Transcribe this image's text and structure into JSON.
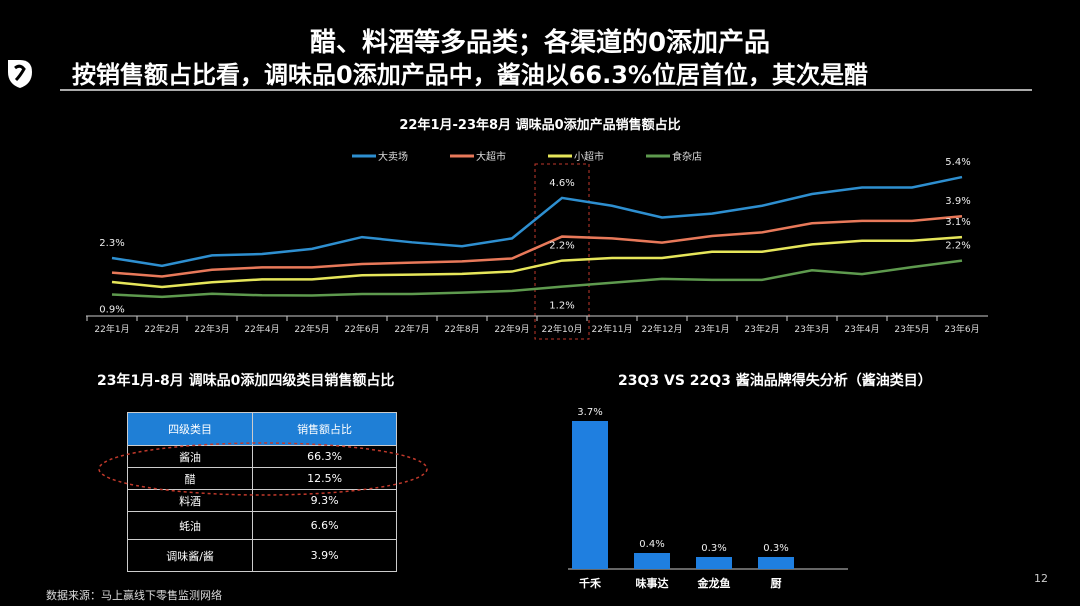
{
  "header": {
    "title_line1": "醋、料酒等多品类；各渠道的0添加产品",
    "title_line2": "按销售额占比看，调味品0添加产品中，酱油以66.3%位居首位，其次是醋"
  },
  "chart_data": [
    {
      "type": "line",
      "title": "22年1月-23年8月 调味品0添加产品销售额占比",
      "ylim": [
        0,
        6
      ],
      "categories": [
        "22年1月",
        "22年2月",
        "22年3月",
        "22年4月",
        "22年5月",
        "22年6月",
        "22年7月",
        "22年8月",
        "22年9月",
        "22年10月",
        "22年11月",
        "22年12月",
        "23年1月",
        "23年2月",
        "23年3月",
        "23年4月",
        "23年5月",
        "23年6月"
      ],
      "series": [
        {
          "name": "大卖场",
          "color": "#2e8fd0",
          "values": [
            2.3,
            2.0,
            2.4,
            2.45,
            2.65,
            3.1,
            2.9,
            2.75,
            3.05,
            4.6,
            4.3,
            3.85,
            4.0,
            4.3,
            4.75,
            5.0,
            5.0,
            5.4
          ]
        },
        {
          "name": "大超市",
          "color": "#e8795a",
          "values": [
            1.74,
            1.59,
            1.85,
            1.94,
            1.94,
            2.07,
            2.12,
            2.17,
            2.28,
            3.12,
            3.05,
            2.89,
            3.14,
            3.28,
            3.63,
            3.72,
            3.72,
            3.9
          ]
        },
        {
          "name": "小超市",
          "color": "#e6e65a",
          "values": [
            1.38,
            1.19,
            1.37,
            1.48,
            1.48,
            1.64,
            1.66,
            1.69,
            1.78,
            2.2,
            2.3,
            2.3,
            2.54,
            2.54,
            2.82,
            2.96,
            2.96,
            3.1
          ]
        },
        {
          "name": "食杂店",
          "color": "#5e9a4e",
          "values": [
            0.9,
            0.81,
            0.93,
            0.87,
            0.86,
            0.92,
            0.92,
            0.97,
            1.04,
            1.2,
            1.35,
            1.5,
            1.46,
            1.46,
            1.83,
            1.68,
            1.95,
            2.2
          ]
        }
      ],
      "annotations": [
        {
          "series": 0,
          "index": 0,
          "text": "2.3%"
        },
        {
          "series": 3,
          "index": 0,
          "text": "0.9%"
        },
        {
          "series": 0,
          "index": 9,
          "text": "4.6%"
        },
        {
          "series": 2,
          "index": 9,
          "text": "2.2%"
        },
        {
          "series": 3,
          "index": 9,
          "text": "1.2%"
        },
        {
          "series": 0,
          "index": 17,
          "text": "5.4%"
        },
        {
          "series": 1,
          "index": 17,
          "text": "3.9%"
        },
        {
          "series": 2,
          "index": 17,
          "text": "3.1%"
        },
        {
          "series": 3,
          "index": 17,
          "text": "2.2%"
        }
      ],
      "highlight_category": "22年10月",
      "legend_position": "top"
    },
    {
      "type": "table",
      "title": "23年1月-8月 调味品0添加四级类目销售额占比",
      "columns": [
        "四级类目",
        "销售额占比"
      ],
      "rows": [
        [
          "酱油",
          "66.3%"
        ],
        [
          "醋",
          "12.5%"
        ],
        [
          "料酒",
          "9.3%"
        ],
        [
          "蚝油",
          "6.6%"
        ],
        [
          "调味酱/酱",
          "3.9%"
        ]
      ]
    },
    {
      "type": "bar",
      "title": "23Q3 VS 22Q3 酱油品牌得失分析（酱油类目）",
      "categories": [
        "千禾",
        "味事达",
        "金龙鱼",
        "厨"
      ],
      "values": [
        3.7,
        0.4,
        0.3,
        0.3
      ],
      "labels": [
        "3.7%",
        "0.4%",
        "0.3%",
        "0.3%"
      ],
      "color": "#1f7fe0",
      "ylim": [
        0,
        4
      ]
    }
  ],
  "footer": {
    "source": "数据来源：马上赢线下零售监测网络",
    "page": "12"
  }
}
